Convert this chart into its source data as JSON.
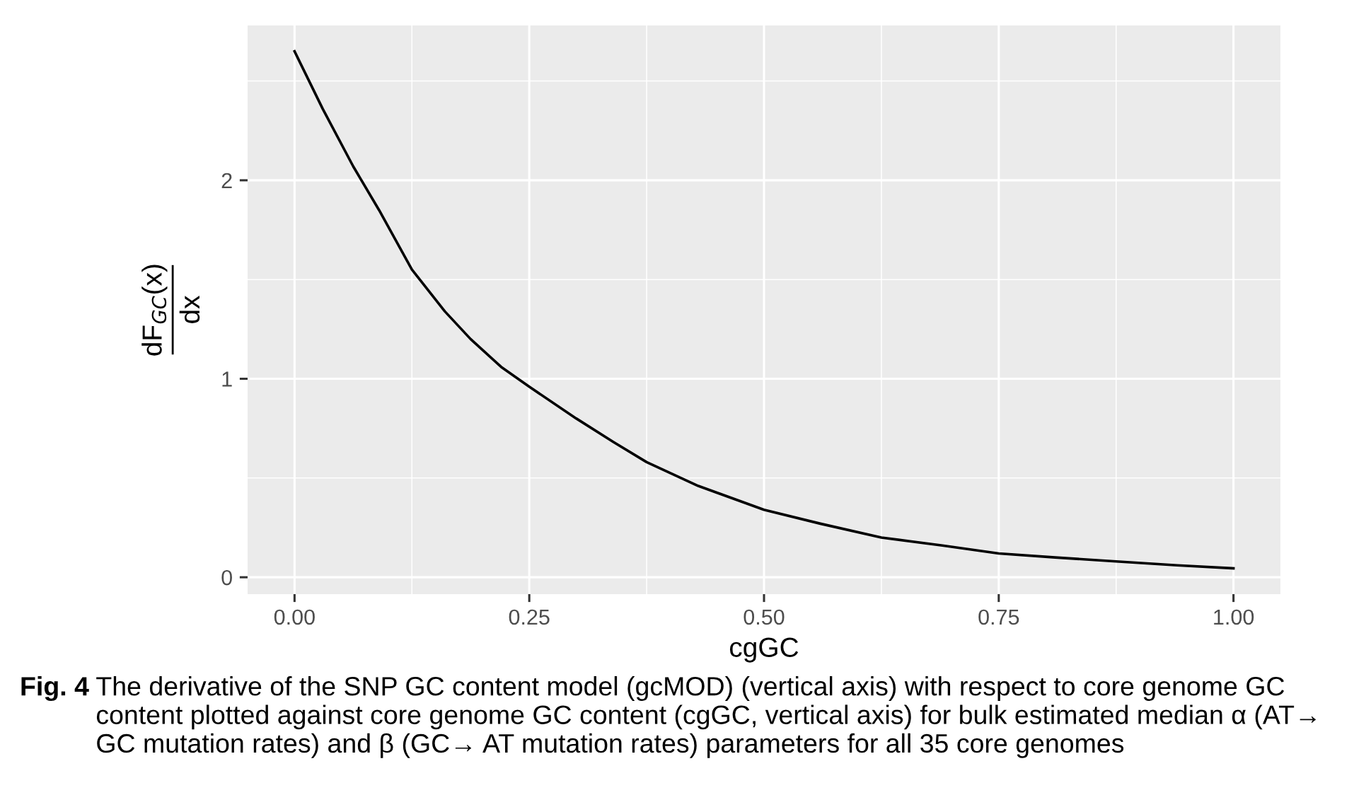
{
  "chart_data": {
    "type": "line",
    "xlabel": "cgGC",
    "ylabel": "dF$_{GC}$(x)\ndx",
    "x": [
      0,
      0.03,
      0.0625,
      0.09,
      0.125,
      0.16,
      0.1875,
      0.22,
      0.25,
      0.3,
      0.34,
      0.375,
      0.43,
      0.5,
      0.56,
      0.625,
      0.69,
      0.75,
      0.81,
      0.875,
      0.94,
      1
    ],
    "series": [
      {
        "color": "#000000",
        "values": [
          2.65,
          2.36,
          2.07,
          1.85,
          1.55,
          1.34,
          1.2,
          1.06,
          0.96,
          0.8,
          0.68,
          0.58,
          0.46,
          0.34,
          0.27,
          0.2,
          0.16,
          0.12,
          0.1,
          0.08,
          0.06,
          0.045
        ]
      }
    ],
    "xlim": [
      -0.05,
      1.05
    ],
    "ylim": [
      -0.085,
      2.78
    ],
    "xticks": [
      {
        "value": 0,
        "label": "0.00"
      },
      {
        "value": 0.25,
        "label": "0.25"
      },
      {
        "value": 0.5,
        "label": "0.50"
      },
      {
        "value": 0.75,
        "label": "0.75"
      },
      {
        "value": 1,
        "label": "1.00"
      }
    ],
    "yticks": [
      0,
      1,
      2
    ],
    "grid": true,
    "marker": "none",
    "line_style": "solid",
    "legend": false,
    "annotations": [
      "Fig. 4",
      "The derivative of the SNP GC content model (gcMOD) (vertical axis) with respect to core genome GC content plotted against core genome GC content (cgGC, vertical axis) for bulk estimated median α (AT→ GC mutation rates) and β (GC→ AT mutation rates) parameters for all 35 core genomes"
    ]
  }
}
